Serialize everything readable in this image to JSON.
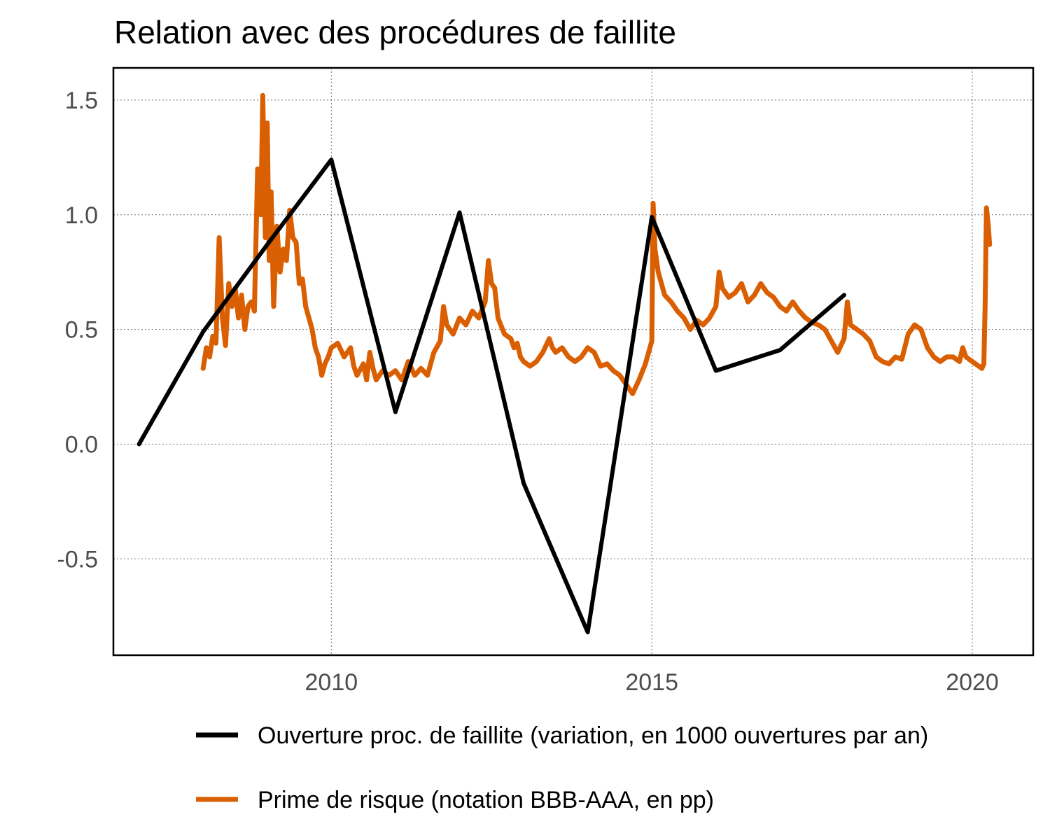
{
  "chart_data": {
    "type": "line",
    "title": "Relation avec des procédures de faillite",
    "xlabel": "",
    "ylabel": "",
    "xlim": [
      2006.6,
      2020.95
    ],
    "ylim": [
      -0.92,
      1.64
    ],
    "x_ticks": [
      2010,
      2015,
      2020
    ],
    "x_tick_labels": [
      "2010",
      "2015",
      "2020"
    ],
    "y_ticks": [
      -0.5,
      0.0,
      0.5,
      1.0,
      1.5
    ],
    "y_tick_labels": [
      "-0.5",
      "0.0",
      "0.5",
      "1.0",
      "1.5"
    ],
    "grid": true,
    "legend_position": "bottom",
    "series": [
      {
        "name": "Ouverture proc. de faillite (variation, en 1000 ouvertures par an)",
        "color": "#000000",
        "points": [
          [
            2007.0,
            0.0
          ],
          [
            2008.0,
            0.49
          ],
          [
            2009.0,
            0.87
          ],
          [
            2010.0,
            1.24
          ],
          [
            2011.0,
            0.14
          ],
          [
            2012.0,
            1.01
          ],
          [
            2013.0,
            -0.17
          ],
          [
            2014.0,
            -0.82
          ],
          [
            2015.0,
            0.99
          ],
          [
            2016.0,
            0.32
          ],
          [
            2017.0,
            0.41
          ],
          [
            2018.0,
            0.65
          ]
        ]
      },
      {
        "name": "Prime de risque (notation BBB-AAA, en pp)",
        "color": "#d95f02",
        "points": [
          [
            2008.0,
            0.33
          ],
          [
            2008.05,
            0.42
          ],
          [
            2008.1,
            0.38
          ],
          [
            2008.15,
            0.47
          ],
          [
            2008.2,
            0.44
          ],
          [
            2008.25,
            0.9
          ],
          [
            2008.3,
            0.55
          ],
          [
            2008.35,
            0.43
          ],
          [
            2008.4,
            0.7
          ],
          [
            2008.45,
            0.6
          ],
          [
            2008.5,
            0.68
          ],
          [
            2008.55,
            0.55
          ],
          [
            2008.6,
            0.65
          ],
          [
            2008.65,
            0.5
          ],
          [
            2008.7,
            0.6
          ],
          [
            2008.75,
            0.62
          ],
          [
            2008.8,
            0.58
          ],
          [
            2008.85,
            1.2
          ],
          [
            2008.9,
            1.0
          ],
          [
            2008.93,
            1.52
          ],
          [
            2008.97,
            0.9
          ],
          [
            2009.0,
            1.4
          ],
          [
            2009.03,
            0.8
          ],
          [
            2009.06,
            1.1
          ],
          [
            2009.1,
            0.6
          ],
          [
            2009.15,
            0.95
          ],
          [
            2009.2,
            0.75
          ],
          [
            2009.25,
            0.85
          ],
          [
            2009.3,
            0.8
          ],
          [
            2009.35,
            1.02
          ],
          [
            2009.4,
            0.9
          ],
          [
            2009.45,
            0.88
          ],
          [
            2009.5,
            0.7
          ],
          [
            2009.55,
            0.72
          ],
          [
            2009.6,
            0.6
          ],
          [
            2009.65,
            0.55
          ],
          [
            2009.7,
            0.5
          ],
          [
            2009.75,
            0.42
          ],
          [
            2009.8,
            0.38
          ],
          [
            2009.85,
            0.3
          ],
          [
            2009.9,
            0.35
          ],
          [
            2009.95,
            0.38
          ],
          [
            2010.0,
            0.42
          ],
          [
            2010.1,
            0.44
          ],
          [
            2010.2,
            0.38
          ],
          [
            2010.3,
            0.42
          ],
          [
            2010.35,
            0.34
          ],
          [
            2010.4,
            0.3
          ],
          [
            2010.5,
            0.35
          ],
          [
            2010.55,
            0.28
          ],
          [
            2010.6,
            0.4
          ],
          [
            2010.65,
            0.33
          ],
          [
            2010.7,
            0.28
          ],
          [
            2010.8,
            0.32
          ],
          [
            2010.9,
            0.3
          ],
          [
            2011.0,
            0.32
          ],
          [
            2011.1,
            0.28
          ],
          [
            2011.2,
            0.36
          ],
          [
            2011.3,
            0.3
          ],
          [
            2011.4,
            0.33
          ],
          [
            2011.5,
            0.3
          ],
          [
            2011.6,
            0.4
          ],
          [
            2011.7,
            0.45
          ],
          [
            2011.75,
            0.6
          ],
          [
            2011.8,
            0.52
          ],
          [
            2011.9,
            0.48
          ],
          [
            2012.0,
            0.55
          ],
          [
            2012.1,
            0.52
          ],
          [
            2012.2,
            0.58
          ],
          [
            2012.3,
            0.55
          ],
          [
            2012.4,
            0.62
          ],
          [
            2012.45,
            0.8
          ],
          [
            2012.5,
            0.7
          ],
          [
            2012.55,
            0.68
          ],
          [
            2012.6,
            0.55
          ],
          [
            2012.7,
            0.48
          ],
          [
            2012.8,
            0.46
          ],
          [
            2012.85,
            0.42
          ],
          [
            2012.9,
            0.44
          ],
          [
            2012.95,
            0.38
          ],
          [
            2013.0,
            0.36
          ],
          [
            2013.1,
            0.34
          ],
          [
            2013.2,
            0.36
          ],
          [
            2013.3,
            0.4
          ],
          [
            2013.4,
            0.46
          ],
          [
            2013.45,
            0.42
          ],
          [
            2013.5,
            0.4
          ],
          [
            2013.6,
            0.42
          ],
          [
            2013.7,
            0.38
          ],
          [
            2013.8,
            0.36
          ],
          [
            2013.9,
            0.38
          ],
          [
            2014.0,
            0.42
          ],
          [
            2014.1,
            0.4
          ],
          [
            2014.2,
            0.34
          ],
          [
            2014.3,
            0.35
          ],
          [
            2014.4,
            0.32
          ],
          [
            2014.5,
            0.3
          ],
          [
            2014.6,
            0.26
          ],
          [
            2014.7,
            0.22
          ],
          [
            2014.8,
            0.28
          ],
          [
            2014.9,
            0.35
          ],
          [
            2015.0,
            0.45
          ],
          [
            2015.02,
            1.05
          ],
          [
            2015.05,
            0.85
          ],
          [
            2015.1,
            0.75
          ],
          [
            2015.15,
            0.7
          ],
          [
            2015.2,
            0.65
          ],
          [
            2015.3,
            0.62
          ],
          [
            2015.4,
            0.58
          ],
          [
            2015.5,
            0.55
          ],
          [
            2015.6,
            0.5
          ],
          [
            2015.7,
            0.54
          ],
          [
            2015.8,
            0.52
          ],
          [
            2015.9,
            0.55
          ],
          [
            2016.0,
            0.6
          ],
          [
            2016.05,
            0.75
          ],
          [
            2016.1,
            0.68
          ],
          [
            2016.2,
            0.64
          ],
          [
            2016.3,
            0.66
          ],
          [
            2016.4,
            0.7
          ],
          [
            2016.5,
            0.62
          ],
          [
            2016.6,
            0.65
          ],
          [
            2016.7,
            0.7
          ],
          [
            2016.8,
            0.66
          ],
          [
            2016.9,
            0.64
          ],
          [
            2017.0,
            0.6
          ],
          [
            2017.1,
            0.58
          ],
          [
            2017.2,
            0.62
          ],
          [
            2017.3,
            0.58
          ],
          [
            2017.4,
            0.55
          ],
          [
            2017.5,
            0.53
          ],
          [
            2017.6,
            0.52
          ],
          [
            2017.7,
            0.5
          ],
          [
            2017.8,
            0.45
          ],
          [
            2017.9,
            0.4
          ],
          [
            2018.0,
            0.46
          ],
          [
            2018.05,
            0.62
          ],
          [
            2018.1,
            0.52
          ],
          [
            2018.2,
            0.5
          ],
          [
            2018.3,
            0.48
          ],
          [
            2018.4,
            0.45
          ],
          [
            2018.5,
            0.38
          ],
          [
            2018.6,
            0.36
          ],
          [
            2018.7,
            0.35
          ],
          [
            2018.8,
            0.38
          ],
          [
            2018.9,
            0.37
          ],
          [
            2019.0,
            0.48
          ],
          [
            2019.1,
            0.52
          ],
          [
            2019.2,
            0.5
          ],
          [
            2019.3,
            0.42
          ],
          [
            2019.4,
            0.38
          ],
          [
            2019.5,
            0.36
          ],
          [
            2019.6,
            0.38
          ],
          [
            2019.7,
            0.38
          ],
          [
            2019.8,
            0.36
          ],
          [
            2019.85,
            0.42
          ],
          [
            2019.9,
            0.38
          ],
          [
            2020.0,
            0.36
          ],
          [
            2020.1,
            0.34
          ],
          [
            2020.15,
            0.33
          ],
          [
            2020.18,
            0.35
          ],
          [
            2020.2,
            0.6
          ],
          [
            2020.22,
            1.03
          ],
          [
            2020.25,
            0.95
          ],
          [
            2020.27,
            0.87
          ]
        ]
      }
    ]
  }
}
